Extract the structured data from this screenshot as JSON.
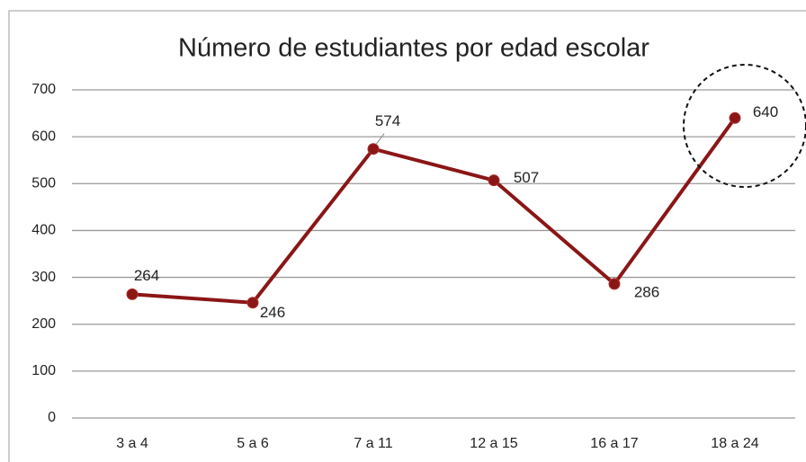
{
  "chart_data": {
    "type": "line",
    "title": "Número de estudiantes por edad escolar",
    "categories": [
      "3 a 4",
      "5 a 6",
      "7 a 11",
      "12 a 15",
      "16 a 17",
      "18 a 24"
    ],
    "values": [
      264,
      246,
      574,
      507,
      286,
      640
    ],
    "color": "#8b1616",
    "ylim": [
      0,
      700
    ],
    "yticks": [
      0,
      100,
      200,
      300,
      400,
      500,
      600,
      700
    ],
    "grid": true
  }
}
